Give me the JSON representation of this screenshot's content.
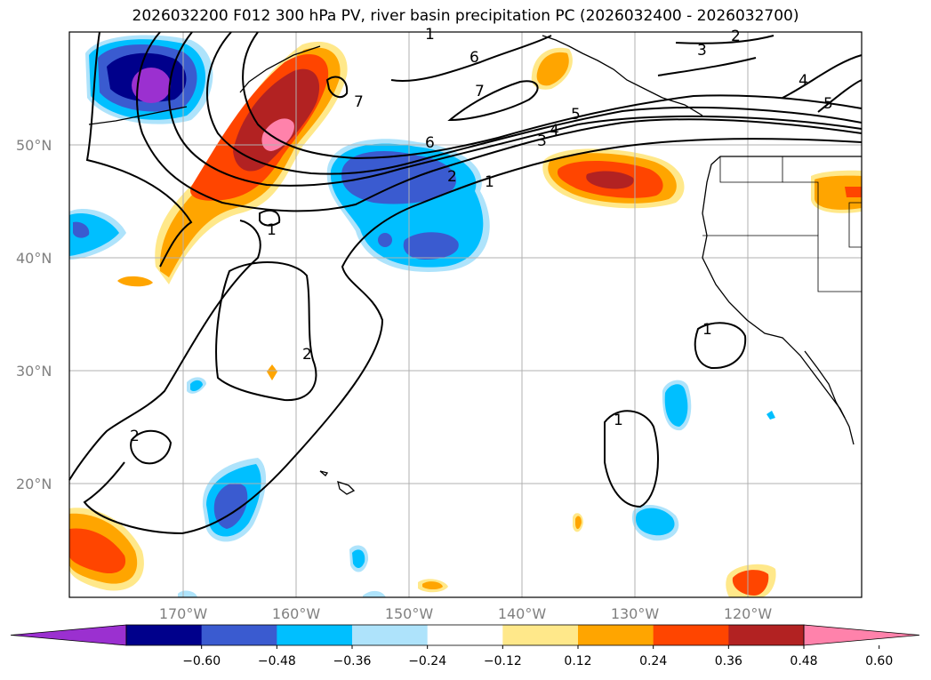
{
  "title": "2026032200 F012 300 hPa PV, river basin precipitation PC (2026032400 - 2026032700)",
  "lat_labels": [
    "50°N",
    "40°N",
    "30°N",
    "20°N"
  ],
  "lon_labels": [
    "170°W",
    "160°W",
    "150°W",
    "140°W",
    "130°W",
    "120°W"
  ],
  "contour_labels": [
    "1",
    "1",
    "1",
    "1",
    "2",
    "2",
    "2",
    "3",
    "3",
    "4",
    "4",
    "5",
    "5",
    "6",
    "6",
    "7",
    "7",
    "1",
    "2"
  ],
  "colorbar": {
    "ticks": [
      "−0.60",
      "−0.48",
      "−0.36",
      "−0.24",
      "−0.12",
      "0.12",
      "0.24",
      "0.36",
      "0.48",
      "0.60"
    ],
    "colors": [
      "#9b30d0",
      "#00008b",
      "#3a5bd0",
      "#00bfff",
      "#aee3fb",
      "#ffffff",
      "#ffe88a",
      "#ffa500",
      "#ff4500",
      "#b22222",
      "#ff82ab"
    ]
  }
}
